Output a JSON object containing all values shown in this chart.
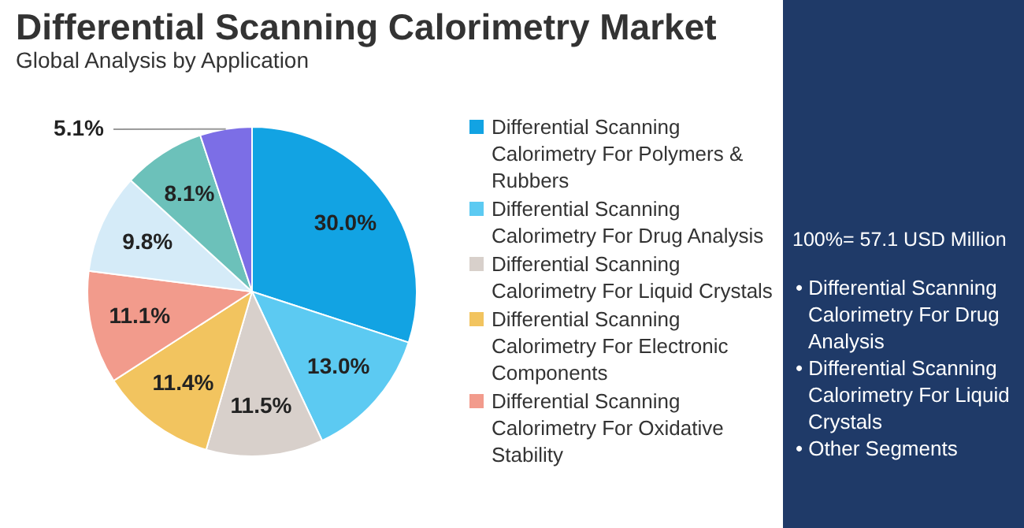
{
  "chart_data": {
    "type": "pie",
    "title": "Differential Scanning Calorimetry Market",
    "subtitle": "Global Analysis by Application",
    "categories": [
      "Differential Scanning Calorimetry For Polymers & Rubbers",
      "Differential Scanning Calorimetry For Drug Analysis",
      "Differential Scanning Calorimetry For Liquid Crystals",
      "Differential Scanning Calorimetry For Electronic Components",
      "Differential Scanning Calorimetry For Oxidative Stability",
      null,
      null,
      null
    ],
    "values": [
      30.0,
      13.0,
      11.5,
      11.4,
      11.1,
      9.8,
      8.1,
      5.1
    ],
    "colors": [
      "#12a3e3",
      "#5ccaf2",
      "#d8d0cb",
      "#f2c45f",
      "#f29b8c",
      "#d5ebf8",
      "#6cc1ba",
      "#7c6ee6"
    ],
    "value_labels": [
      "30.0%",
      "13.0%",
      "11.5%",
      "11.4%",
      "11.1%",
      "9.8%",
      "8.1%",
      "5.1%"
    ],
    "legend": "right",
    "annotations": [
      "100%= 57.1 USD Million",
      "• Differential Scanning Calorimetry For Drug Analysis",
      "• Differential Scanning Calorimetry For Liquid Crystals",
      "• Other Segments"
    ]
  }
}
